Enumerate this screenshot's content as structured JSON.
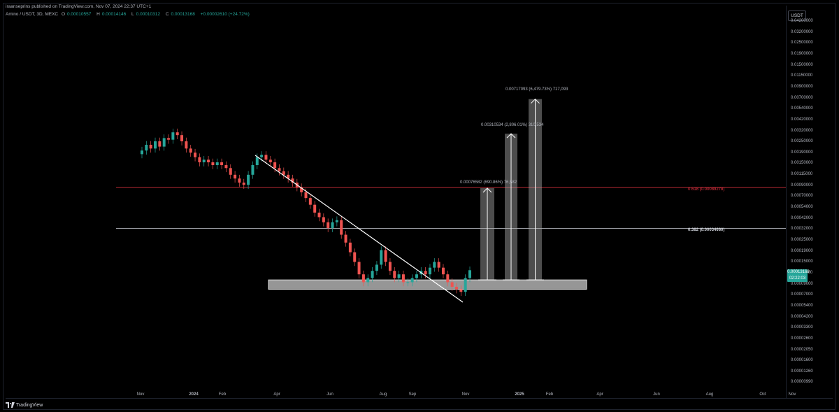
{
  "header": {
    "publisher_line": "iraanseprins published on TradingView.com, Nov 07, 2024 22:37 UTC+1",
    "symbol_line": "Amino / USDT, 3D, MEXC",
    "open_label": "O",
    "open": "0.00010557",
    "high_label": "H",
    "high": "0.00014146",
    "low_label": "L",
    "low": "0.00010312",
    "close_label": "C",
    "close": "0.00013168",
    "change": "+0.00002610 (+24.72%)",
    "currency": "USDT"
  },
  "price_badge": {
    "price": "0.00013168",
    "countdown": "02:22:03"
  },
  "footer": {
    "brand": "TradingView"
  },
  "colors": {
    "up": "#26a69a",
    "down": "#ef5350",
    "fib_618": "#f23645",
    "fib_382": "#d1d4dc"
  },
  "chart_data": {
    "type": "candlestick",
    "scale": "log",
    "y_ticks": [
      "0.04200000",
      "0.03200000",
      "0.02500000",
      "0.01900000",
      "0.01500000",
      "0.01150000",
      "0.00900000",
      "0.00700000",
      "0.00540000",
      "0.00420000",
      "0.00320000",
      "0.00250000",
      "0.00190000",
      "0.00150000",
      "0.00115000",
      "0.00090000",
      "0.00070000",
      "0.00054000",
      "0.00042000",
      "0.00032000",
      "0.00025000",
      "0.00019000",
      "0.00015000",
      "0.00011500",
      "0.00009000",
      "0.00007000",
      "0.00005400",
      "0.00004200",
      "0.00003300",
      "0.00002600",
      "0.00002050",
      "0.00001600",
      "0.00001260",
      "0.00000990"
    ],
    "x_ticks": [
      "Nov",
      "2024",
      "Feb",
      "Apr",
      "Jun",
      "Aug",
      "Sep",
      "Nov",
      "2025",
      "Feb",
      "Apr",
      "Jun",
      "Aug",
      "Oct",
      "Nov"
    ],
    "bold_x_ticks": [
      "2024",
      "2025"
    ],
    "candles_close_approx": [
      0.0021,
      0.0024,
      0.0022,
      0.0026,
      0.0023,
      0.0028,
      0.0027,
      0.0032,
      0.003,
      0.0026,
      0.0022,
      0.002,
      0.0018,
      0.0016,
      0.0017,
      0.0016,
      0.0015,
      0.0016,
      0.0015,
      0.0014,
      0.0012,
      0.0011,
      0.001,
      0.00095,
      0.0012,
      0.0015,
      0.0018,
      0.0019,
      0.0017,
      0.0016,
      0.0014,
      0.0013,
      0.0012,
      0.0011,
      0.001,
      0.0009,
      0.0008,
      0.0007,
      0.0006,
      0.0005,
      0.00045,
      0.0004,
      0.00035,
      0.0004,
      0.00042,
      0.0003,
      0.00025,
      0.0002,
      0.00016,
      0.00012,
      0.0001,
      0.00011,
      0.00013,
      0.00015,
      0.00021,
      0.00016,
      0.00013,
      0.00011,
      0.00012,
      0.0001,
      0.0001,
      0.00011,
      0.00012,
      0.00013,
      0.00012,
      0.00014,
      0.00016,
      0.00014,
      0.00012,
      0.0001,
      9e-05,
      8.5e-05,
      8e-05,
      0.00011,
      0.000132
    ],
    "fib_levels": [
      {
        "label": "0.618 (0.00089278)",
        "value": 0.00089278
      },
      {
        "label": "0.382 (0.00034660)",
        "value": 0.0003466
      }
    ],
    "support_zone": {
      "low": 8.5e-05,
      "high": 0.0001055
    },
    "downtrend_line": true,
    "projections": [
      {
        "label": "0.00076582 (690.86%) 76,582",
        "target": 0.00088
      },
      {
        "label": "0.00310534 (2,806.01%) 310,534",
        "target": 0.0031
      },
      {
        "label": "0.00717093 (6,479.73%) 717,093",
        "target": 0.0069
      }
    ]
  }
}
